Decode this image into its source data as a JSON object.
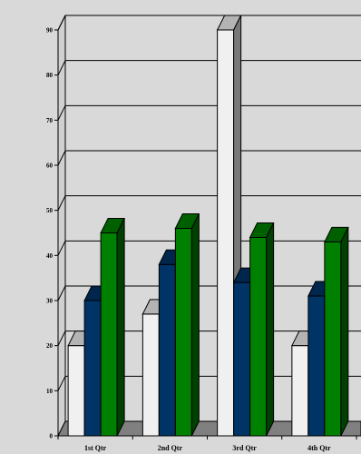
{
  "chart_data": {
    "type": "bar",
    "style": "3d-clustered-column",
    "categories": [
      "1st Qtr",
      "2nd Qtr",
      "3rd Qtr",
      "4th Qtr"
    ],
    "series": [
      {
        "values": [
          20,
          27,
          90,
          20
        ],
        "color": "#f0f0f0"
      },
      {
        "values": [
          30,
          38,
          34,
          31
        ],
        "color": "#003366"
      },
      {
        "values": [
          45,
          46,
          44,
          43
        ],
        "color": "#008000"
      }
    ],
    "yticks": [
      "0",
      "10",
      "20",
      "30",
      "40",
      "50",
      "60",
      "70",
      "80",
      "90"
    ],
    "ylim": [
      0,
      90
    ],
    "grid": true,
    "legend": "none",
    "title": "",
    "xlabel": "",
    "ylabel": ""
  }
}
